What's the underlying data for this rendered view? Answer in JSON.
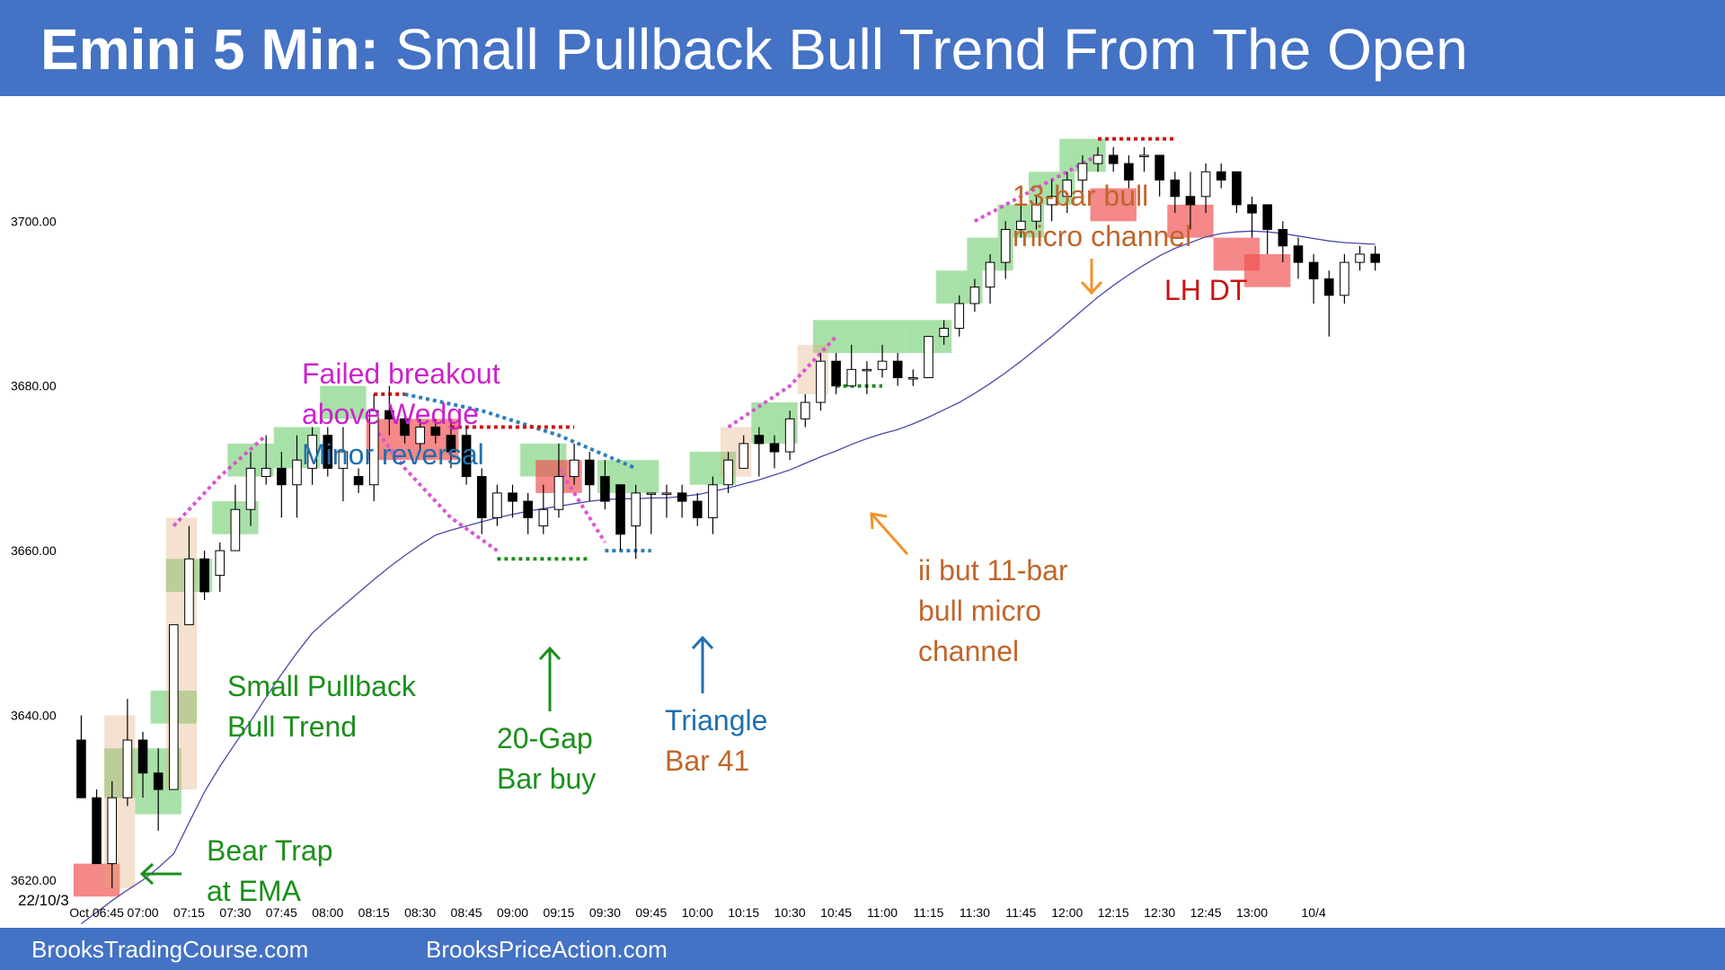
{
  "header": {
    "title_bold": "Emini 5 Min:",
    "title_rest": "Small Pullback Bull Trend From The Open"
  },
  "footer": {
    "left": "BrooksTradingCourse.com",
    "right": "BrooksPriceAction.com"
  },
  "chart_data": {
    "type": "candlestick",
    "title": "Emini 5 Min: Small Pullback Bull Trend From The Open",
    "date_label": "22/10/3",
    "x_tick_labels": [
      "Oct 06:45",
      "07:00",
      "07:15",
      "07:30",
      "07:45",
      "08:00",
      "08:15",
      "08:30",
      "08:45",
      "09:00",
      "09:15",
      "09:30",
      "09:45",
      "10:00",
      "10:15",
      "10:30",
      "10:45",
      "11:00",
      "11:15",
      "11:30",
      "11:45",
      "12:00",
      "12:15",
      "12:30",
      "12:45",
      "13:00",
      "10/4"
    ],
    "x_tick_bar_index": [
      1,
      4,
      7,
      10,
      13,
      16,
      19,
      22,
      25,
      28,
      31,
      34,
      37,
      40,
      43,
      46,
      49,
      52,
      55,
      58,
      61,
      64,
      67,
      70,
      73,
      76,
      80
    ],
    "y_ticks": [
      "3620.00",
      "3640.00",
      "3660.00",
      "3680.00",
      "3700.00"
    ],
    "y_tick_values": [
      3620,
      3640,
      3660,
      3680,
      3700
    ],
    "ylim": [
      3616.5,
      3710.5
    ],
    "xlim": [
      -0.9,
      86
    ],
    "bars": [
      {
        "o": 3637,
        "h": 3640,
        "l": 3630,
        "c": 3630
      },
      {
        "o": 3630,
        "h": 3631,
        "l": 3622,
        "c": 3622
      },
      {
        "o": 3622,
        "h": 3632,
        "l": 3619,
        "c": 3630
      },
      {
        "o": 3630,
        "h": 3642,
        "l": 3629,
        "c": 3637
      },
      {
        "o": 3637,
        "h": 3638,
        "l": 3630,
        "c": 3633
      },
      {
        "o": 3633,
        "h": 3636,
        "l": 3626,
        "c": 3631
      },
      {
        "o": 3631,
        "h": 3651,
        "l": 3631,
        "c": 3651
      },
      {
        "o": 3651,
        "h": 3663,
        "l": 3651,
        "c": 3659
      },
      {
        "o": 3659,
        "h": 3660,
        "l": 3654,
        "c": 3655
      },
      {
        "o": 3657,
        "h": 3661,
        "l": 3655,
        "c": 3660
      },
      {
        "o": 3660,
        "h": 3668,
        "l": 3660,
        "c": 3665
      },
      {
        "o": 3665,
        "h": 3672,
        "l": 3663,
        "c": 3670
      },
      {
        "o": 3669,
        "h": 3674,
        "l": 3668,
        "c": 3670
      },
      {
        "o": 3670,
        "h": 3672,
        "l": 3664,
        "c": 3668
      },
      {
        "o": 3668,
        "h": 3674,
        "l": 3664,
        "c": 3671
      },
      {
        "o": 3670,
        "h": 3675,
        "l": 3668,
        "c": 3674
      },
      {
        "o": 3674,
        "h": 3675,
        "l": 3669,
        "c": 3670
      },
      {
        "o": 3670,
        "h": 3675,
        "l": 3666,
        "c": 3672
      },
      {
        "o": 3669,
        "h": 3670,
        "l": 3667,
        "c": 3668
      },
      {
        "o": 3668,
        "h": 3679,
        "l": 3666,
        "c": 3677
      },
      {
        "o": 3677,
        "h": 3680,
        "l": 3674,
        "c": 3676
      },
      {
        "o": 3676,
        "h": 3677,
        "l": 3673,
        "c": 3674
      },
      {
        "o": 3673,
        "h": 3676,
        "l": 3672,
        "c": 3675
      },
      {
        "o": 3675,
        "h": 3676,
        "l": 3673,
        "c": 3674
      },
      {
        "o": 3674,
        "h": 3676,
        "l": 3670,
        "c": 3672
      },
      {
        "o": 3674,
        "h": 3675,
        "l": 3668,
        "c": 3669
      },
      {
        "o": 3669,
        "h": 3670,
        "l": 3662,
        "c": 3664
      },
      {
        "o": 3664,
        "h": 3668,
        "l": 3663,
        "c": 3667
      },
      {
        "o": 3667,
        "h": 3668,
        "l": 3664,
        "c": 3666
      },
      {
        "o": 3666,
        "h": 3667,
        "l": 3662,
        "c": 3664
      },
      {
        "o": 3663,
        "h": 3668,
        "l": 3662,
        "c": 3665
      },
      {
        "o": 3665,
        "h": 3673,
        "l": 3664,
        "c": 3669
      },
      {
        "o": 3669,
        "h": 3673,
        "l": 3668,
        "c": 3671
      },
      {
        "o": 3671,
        "h": 3672,
        "l": 3666,
        "c": 3668
      },
      {
        "o": 3669,
        "h": 3671,
        "l": 3665,
        "c": 3666
      },
      {
        "o": 3668,
        "h": 3668,
        "l": 3660,
        "c": 3662
      },
      {
        "o": 3663,
        "h": 3668,
        "l": 3659,
        "c": 3667
      },
      {
        "o": 3667,
        "h": 3667,
        "l": 3662,
        "c": 3667
      },
      {
        "o": 3667,
        "h": 3668,
        "l": 3664,
        "c": 3667
      },
      {
        "o": 3667,
        "h": 3668,
        "l": 3664,
        "c": 3666
      },
      {
        "o": 3666,
        "h": 3667,
        "l": 3663,
        "c": 3664
      },
      {
        "o": 3664,
        "h": 3669,
        "l": 3662,
        "c": 3668
      },
      {
        "o": 3668,
        "h": 3672,
        "l": 3667,
        "c": 3671
      },
      {
        "o": 3670,
        "h": 3674,
        "l": 3670,
        "c": 3673
      },
      {
        "o": 3674,
        "h": 3675,
        "l": 3669,
        "c": 3673
      },
      {
        "o": 3673,
        "h": 3674,
        "l": 3670,
        "c": 3672
      },
      {
        "o": 3672,
        "h": 3677,
        "l": 3671,
        "c": 3676
      },
      {
        "o": 3676,
        "h": 3679,
        "l": 3675,
        "c": 3678
      },
      {
        "o": 3678,
        "h": 3684,
        "l": 3677,
        "c": 3683
      },
      {
        "o": 3683,
        "h": 3684,
        "l": 3679,
        "c": 3680
      },
      {
        "o": 3680,
        "h": 3685,
        "l": 3680,
        "c": 3682
      },
      {
        "o": 3682,
        "h": 3683,
        "l": 3679,
        "c": 3682
      },
      {
        "o": 3682,
        "h": 3685,
        "l": 3681,
        "c": 3683
      },
      {
        "o": 3683,
        "h": 3684,
        "l": 3680,
        "c": 3681
      },
      {
        "o": 3681,
        "h": 3682,
        "l": 3680,
        "c": 3681
      },
      {
        "o": 3681,
        "h": 3686,
        "l": 3681,
        "c": 3686
      },
      {
        "o": 3686,
        "h": 3688,
        "l": 3685,
        "c": 3687
      },
      {
        "o": 3687,
        "h": 3691,
        "l": 3686,
        "c": 3690
      },
      {
        "o": 3690,
        "h": 3693,
        "l": 3689,
        "c": 3692
      },
      {
        "o": 3692,
        "h": 3696,
        "l": 3690,
        "c": 3695
      },
      {
        "o": 3695,
        "h": 3700,
        "l": 3693,
        "c": 3699
      },
      {
        "o": 3699,
        "h": 3702,
        "l": 3698,
        "c": 3700
      },
      {
        "o": 3700,
        "h": 3703,
        "l": 3699,
        "c": 3702
      },
      {
        "o": 3702,
        "h": 3705,
        "l": 3700,
        "c": 3703
      },
      {
        "o": 3703,
        "h": 3706,
        "l": 3701,
        "c": 3705
      },
      {
        "o": 3705,
        "h": 3708,
        "l": 3703,
        "c": 3707
      },
      {
        "o": 3707,
        "h": 3709,
        "l": 3706,
        "c": 3708
      },
      {
        "o": 3708,
        "h": 3709,
        "l": 3706,
        "c": 3707
      },
      {
        "o": 3707,
        "h": 3708,
        "l": 3704,
        "c": 3705
      },
      {
        "o": 3708,
        "h": 3709,
        "l": 3706,
        "c": 3708
      },
      {
        "o": 3708,
        "h": 3708,
        "l": 3703,
        "c": 3705
      },
      {
        "o": 3705,
        "h": 3706,
        "l": 3701,
        "c": 3703
      },
      {
        "o": 3703,
        "h": 3706,
        "l": 3699,
        "c": 3702
      },
      {
        "o": 3703,
        "h": 3707,
        "l": 3701,
        "c": 3706
      },
      {
        "o": 3706,
        "h": 3707,
        "l": 3704,
        "c": 3705
      },
      {
        "o": 3706,
        "h": 3706,
        "l": 3701,
        "c": 3702
      },
      {
        "o": 3702,
        "h": 3703,
        "l": 3698,
        "c": 3701
      },
      {
        "o": 3702,
        "h": 3702,
        "l": 3696,
        "c": 3699
      },
      {
        "o": 3699,
        "h": 3700,
        "l": 3695,
        "c": 3697
      },
      {
        "o": 3697,
        "h": 3698,
        "l": 3693,
        "c": 3695
      },
      {
        "o": 3695,
        "h": 3696,
        "l": 3690,
        "c": 3693
      },
      {
        "o": 3693,
        "h": 3694,
        "l": 3686,
        "c": 3691
      },
      {
        "o": 3691,
        "h": 3696,
        "l": 3690,
        "c": 3695
      },
      {
        "o": 3695,
        "h": 3697,
        "l": 3694,
        "c": 3696
      },
      {
        "o": 3696,
        "h": 3697,
        "l": 3694,
        "c": 3695
      }
    ],
    "ema": [
      3614.7,
      3616.1,
      3617.5,
      3618.8,
      3620.0,
      3621.5,
      3623.2,
      3627.0,
      3630.7,
      3633.8,
      3636.6,
      3639.3,
      3642.2,
      3645.0,
      3647.6,
      3650.0,
      3651.7,
      3653.3,
      3654.9,
      3656.5,
      3658.0,
      3659.4,
      3660.7,
      3661.9,
      3662.5,
      3663.0,
      3663.5,
      3664.0,
      3664.4,
      3664.8,
      3665.1,
      3665.4,
      3665.7,
      3666.0,
      3666.2,
      3666.3,
      3666.3,
      3666.4,
      3666.4,
      3666.6,
      3666.8,
      3667.2,
      3667.6,
      3668.1,
      3668.6,
      3669.2,
      3669.8,
      3670.6,
      3671.4,
      3672.1,
      3672.9,
      3673.6,
      3674.2,
      3674.7,
      3675.4,
      3676.2,
      3677.1,
      3678.0,
      3679.1,
      3680.3,
      3681.6,
      3683.0,
      3684.5,
      3686.0,
      3687.6,
      3689.2,
      3690.8,
      3692.2,
      3693.5,
      3694.7,
      3695.8,
      3696.7,
      3697.4,
      3698.1,
      3698.5,
      3698.7,
      3698.8,
      3698.7,
      3698.5,
      3698.2,
      3697.9,
      3697.6,
      3697.4,
      3697.3,
      3697.2
    ],
    "highlights": [
      {
        "type": "bull",
        "bars": [
          2,
          3
        ],
        "from": 3630,
        "to": 3636
      },
      {
        "type": "bull",
        "bars": [
          4,
          6
        ],
        "from": 3636,
        "to": 3628
      },
      {
        "type": "bull",
        "bars": [
          5,
          7
        ],
        "from": 3643,
        "to": 3639
      },
      {
        "type": "bull",
        "bars": [
          6,
          8
        ],
        "from": 3659,
        "to": 3655
      },
      {
        "type": "bull",
        "bars": [
          9,
          11
        ],
        "from": 3666,
        "to": 3662
      },
      {
        "type": "bull",
        "bars": [
          10,
          12
        ],
        "from": 3673,
        "to": 3669
      },
      {
        "type": "bull",
        "bars": [
          13,
          15
        ],
        "from": 3675,
        "to": 3670
      },
      {
        "type": "bull",
        "bars": [
          16,
          18
        ],
        "from": 3680,
        "to": 3676
      },
      {
        "type": "bull",
        "bars": [
          29,
          31
        ],
        "from": 3673,
        "to": 3669
      },
      {
        "type": "bull",
        "bars": [
          34,
          37
        ],
        "from": 3671,
        "to": 3667
      },
      {
        "type": "bull",
        "bars": [
          40,
          42
        ],
        "from": 3672,
        "to": 3668
      },
      {
        "type": "bull",
        "bars": [
          44,
          46
        ],
        "from": 3678,
        "to": 3673
      },
      {
        "type": "bull",
        "bars": [
          48,
          50
        ],
        "from": 3688,
        "to": 3684
      },
      {
        "type": "bull",
        "bars": [
          51,
          53
        ],
        "from": 3688,
        "to": 3684
      },
      {
        "type": "bull",
        "bars": [
          54,
          56
        ],
        "from": 3688,
        "to": 3684
      },
      {
        "type": "bull",
        "bars": [
          56,
          58
        ],
        "from": 3694,
        "to": 3690
      },
      {
        "type": "bull",
        "bars": [
          58,
          60
        ],
        "from": 3698,
        "to": 3694
      },
      {
        "type": "bull",
        "bars": [
          60,
          62
        ],
        "from": 3702,
        "to": 3698
      },
      {
        "type": "bull",
        "bars": [
          62,
          64
        ],
        "from": 3706,
        "to": 3702
      },
      {
        "type": "bull",
        "bars": [
          64,
          66
        ],
        "from": 3710,
        "to": 3706
      },
      {
        "type": "bear",
        "bars": [
          0,
          2
        ],
        "from": 3622,
        "to": 3618
      },
      {
        "type": "bear",
        "bars": [
          19,
          24
        ],
        "from": 3676,
        "to": 3671
      },
      {
        "type": "bear",
        "bars": [
          30,
          32
        ],
        "from": 3671,
        "to": 3667
      },
      {
        "type": "bear",
        "bars": [
          66,
          68
        ],
        "from": 3704,
        "to": 3700
      },
      {
        "type": "bear",
        "bars": [
          71,
          73
        ],
        "from": 3702,
        "to": 3698
      },
      {
        "type": "bear",
        "bars": [
          74,
          76
        ],
        "from": 3698,
        "to": 3694
      },
      {
        "type": "bear",
        "bars": [
          76,
          78
        ],
        "from": 3696,
        "to": 3692
      },
      {
        "type": "tan",
        "bars": [
          2,
          3
        ],
        "from": 3640,
        "to": 3619
      },
      {
        "type": "tan",
        "bars": [
          6,
          7
        ],
        "from": 3664,
        "to": 3631
      },
      {
        "type": "tan",
        "bars": [
          42,
          43
        ],
        "from": 3675,
        "to": 3669
      },
      {
        "type": "tan",
        "bars": [
          47,
          48
        ],
        "from": 3685,
        "to": 3679
      }
    ],
    "lines": [
      {
        "color": "#d957d0",
        "points": [
          [
            6,
            3663
          ],
          [
            9,
            3669
          ],
          [
            12,
            3674
          ]
        ]
      },
      {
        "color": "#d957d0",
        "points": [
          [
            19,
            3675
          ],
          [
            21,
            3670
          ],
          [
            24,
            3664
          ],
          [
            27,
            3660
          ]
        ]
      },
      {
        "color": "#d957d0",
        "points": [
          [
            31,
            3670
          ],
          [
            32,
            3667
          ],
          [
            34,
            3661
          ]
        ]
      },
      {
        "color": "#d957d0",
        "points": [
          [
            42,
            3675
          ],
          [
            46,
            3680
          ],
          [
            49,
            3686
          ]
        ]
      },
      {
        "color": "#d957d0",
        "points": [
          [
            58,
            3700
          ],
          [
            62,
            3704
          ],
          [
            66,
            3708
          ]
        ]
      },
      {
        "color": "#2e7dba",
        "points": [
          [
            21,
            3679
          ],
          [
            26,
            3677
          ],
          [
            31,
            3674
          ],
          [
            36,
            3670
          ]
        ]
      },
      {
        "color": "#2e7dba",
        "points": [
          [
            34,
            3660
          ],
          [
            37,
            3660
          ]
        ]
      },
      {
        "color": "#d01010",
        "points": [
          [
            19,
            3679
          ],
          [
            21,
            3679
          ]
        ]
      },
      {
        "color": "#d01010",
        "points": [
          [
            24,
            3675
          ],
          [
            32,
            3675
          ]
        ]
      },
      {
        "color": "#d01010",
        "points": [
          [
            66,
            3710
          ],
          [
            71,
            3710
          ]
        ]
      },
      {
        "color": "#1c8c1c",
        "points": [
          [
            27,
            3659
          ],
          [
            33,
            3659
          ]
        ]
      },
      {
        "color": "#1c8c1c",
        "points": [
          [
            49,
            3680
          ],
          [
            52,
            3680
          ]
        ]
      }
    ],
    "annotations": [
      {
        "lines": [
          "Failed breakout",
          "above Wedge"
        ],
        "color": "#cc22cc"
      },
      {
        "lines": [
          "Minor reversal"
        ],
        "color": "#1f6fb0"
      },
      {
        "lines": [
          "Small Pullback",
          "Bull Trend"
        ],
        "color": "#1a8f1a"
      },
      {
        "lines": [
          "Bear Trap",
          "at EMA"
        ],
        "color": "#1a8f1a"
      },
      {
        "lines": [
          "20-Gap",
          "Bar buy"
        ],
        "color": "#1a8f1a"
      },
      {
        "lines": [
          "Triangle"
        ],
        "color": "#1f6fb0"
      },
      {
        "lines": [
          "Bar 41"
        ],
        "color": "#c0652a"
      },
      {
        "lines": [
          "ii but 11-bar",
          "bull micro",
          "channel"
        ],
        "color": "#c0652a"
      },
      {
        "lines": [
          "13-bar bull",
          "micro channel"
        ],
        "color": "#c0652a"
      },
      {
        "lines": [
          "LH DT"
        ],
        "color": "#cc1111"
      }
    ]
  }
}
